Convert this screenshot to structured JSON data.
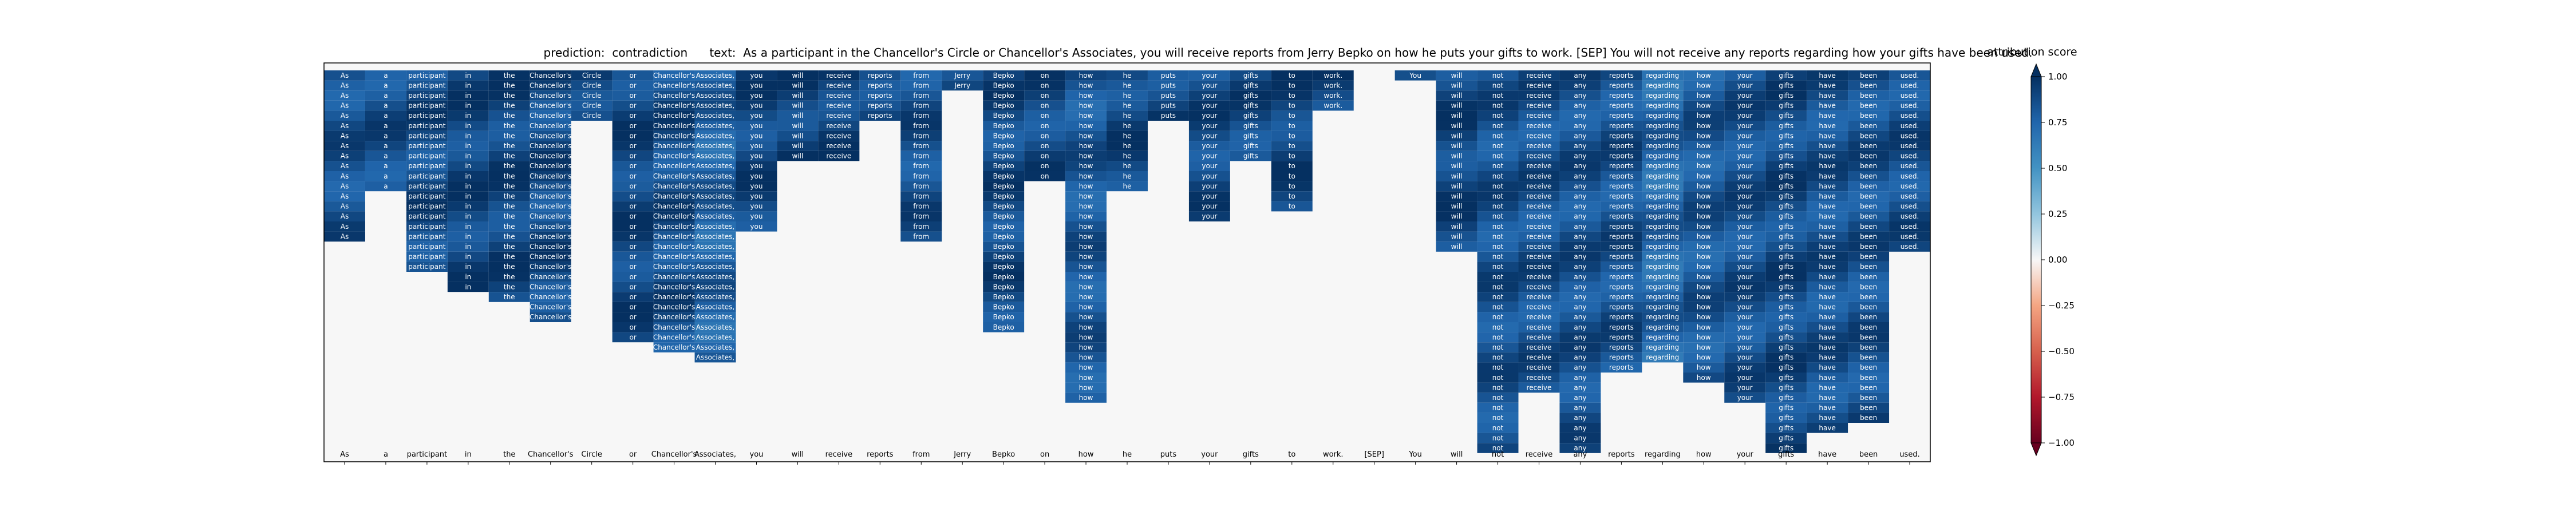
{
  "header": {
    "prediction_label": "prediction:",
    "prediction_value": "contradiction",
    "text_label": "text:",
    "text_value": "As a participant in the Chancellor's Circle or Chancellor's Associates, you will receive reports from Jerry Bepko on how he puts your gifts to work. [SEP] You will not receive any reports regarding how your gifts have been used."
  },
  "colorbar": {
    "title": "attribution score",
    "ticks": [
      "1.00",
      "0.75",
      "0.50",
      "0.25",
      "0.00",
      "−0.25",
      "−0.50",
      "−0.75",
      "−1.00"
    ],
    "tick_values": [
      1.0,
      0.75,
      0.5,
      0.25,
      0.0,
      -0.25,
      -0.5,
      -0.75,
      -1.0
    ],
    "colormap": "RdBu",
    "colors": {
      "low": "#67001f",
      "mid": "#f7f7f7",
      "high": "#053061"
    }
  },
  "chart_data": {
    "type": "heatmap",
    "tokens": [
      "As",
      "a",
      "participant",
      "in",
      "the",
      "Chancellor's",
      "Circle",
      "or",
      "Chancellor's",
      "Associates,",
      "you",
      "will",
      "receive",
      "reports",
      "from",
      "Jerry",
      "Bepko",
      "on",
      "how",
      "he",
      "puts",
      "your",
      "gifts",
      "to",
      "work.",
      "[SEP]",
      "You",
      "will",
      "not",
      "receive",
      "any",
      "reports",
      "regarding",
      "how",
      "your",
      "gifts",
      "have",
      "been",
      "used."
    ],
    "column_depths": [
      17,
      12,
      20,
      22,
      23,
      25,
      5,
      27,
      28,
      29,
      16,
      9,
      9,
      5,
      17,
      2,
      26,
      11,
      33,
      12,
      5,
      15,
      9,
      14,
      4,
      0,
      1,
      18,
      38,
      32,
      38,
      30,
      29,
      31,
      33,
      38,
      36,
      35,
      18
    ],
    "column_scores": [
      0.85,
      0.86,
      0.88,
      0.9,
      0.9,
      0.88,
      0.92,
      0.9,
      0.87,
      0.78,
      0.9,
      0.92,
      0.92,
      0.9,
      0.86,
      0.9,
      0.88,
      0.88,
      0.82,
      0.9,
      0.9,
      0.88,
      0.88,
      0.9,
      0.9,
      0.0,
      0.95,
      0.9,
      0.85,
      0.85,
      0.85,
      0.85,
      0.75,
      0.82,
      0.85,
      0.88,
      0.85,
      0.85,
      0.86
    ],
    "value_range": [
      -1.0,
      1.0
    ],
    "rows": 38,
    "legend": "right"
  }
}
